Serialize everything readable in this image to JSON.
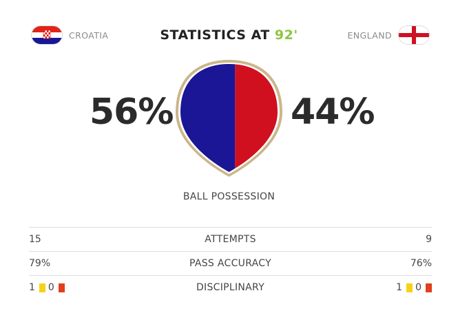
{
  "header": {
    "home_team": "CROATIA",
    "away_team": "ENGLAND",
    "title_prefix": "STATISTICS AT",
    "minute": "92'"
  },
  "possession": {
    "home_percent_text": "56%",
    "away_percent_text": "44%",
    "home_value": 56,
    "away_value": 44,
    "label": "BALL POSSESSION",
    "home_color": "#1a1696",
    "away_color": "#d0101e"
  },
  "stats": [
    {
      "label": "ATTEMPTS",
      "home": "15",
      "away": "9"
    },
    {
      "label": "PASS ACCURACY",
      "home": "79%",
      "away": "76%"
    }
  ],
  "disciplinary": {
    "label": "DISCIPLINARY",
    "home_yellow": "1",
    "home_red": "0",
    "away_yellow": "1",
    "away_red": "0"
  },
  "colors": {
    "accent_minute": "#8dc63f",
    "yellow_card": "#f7d117",
    "red_card": "#e0401c"
  },
  "icons": {
    "home_flag": "croatia-flag-icon",
    "away_flag": "england-flag-icon",
    "yellow_card": "yellow-card-icon",
    "red_card": "red-card-icon"
  }
}
